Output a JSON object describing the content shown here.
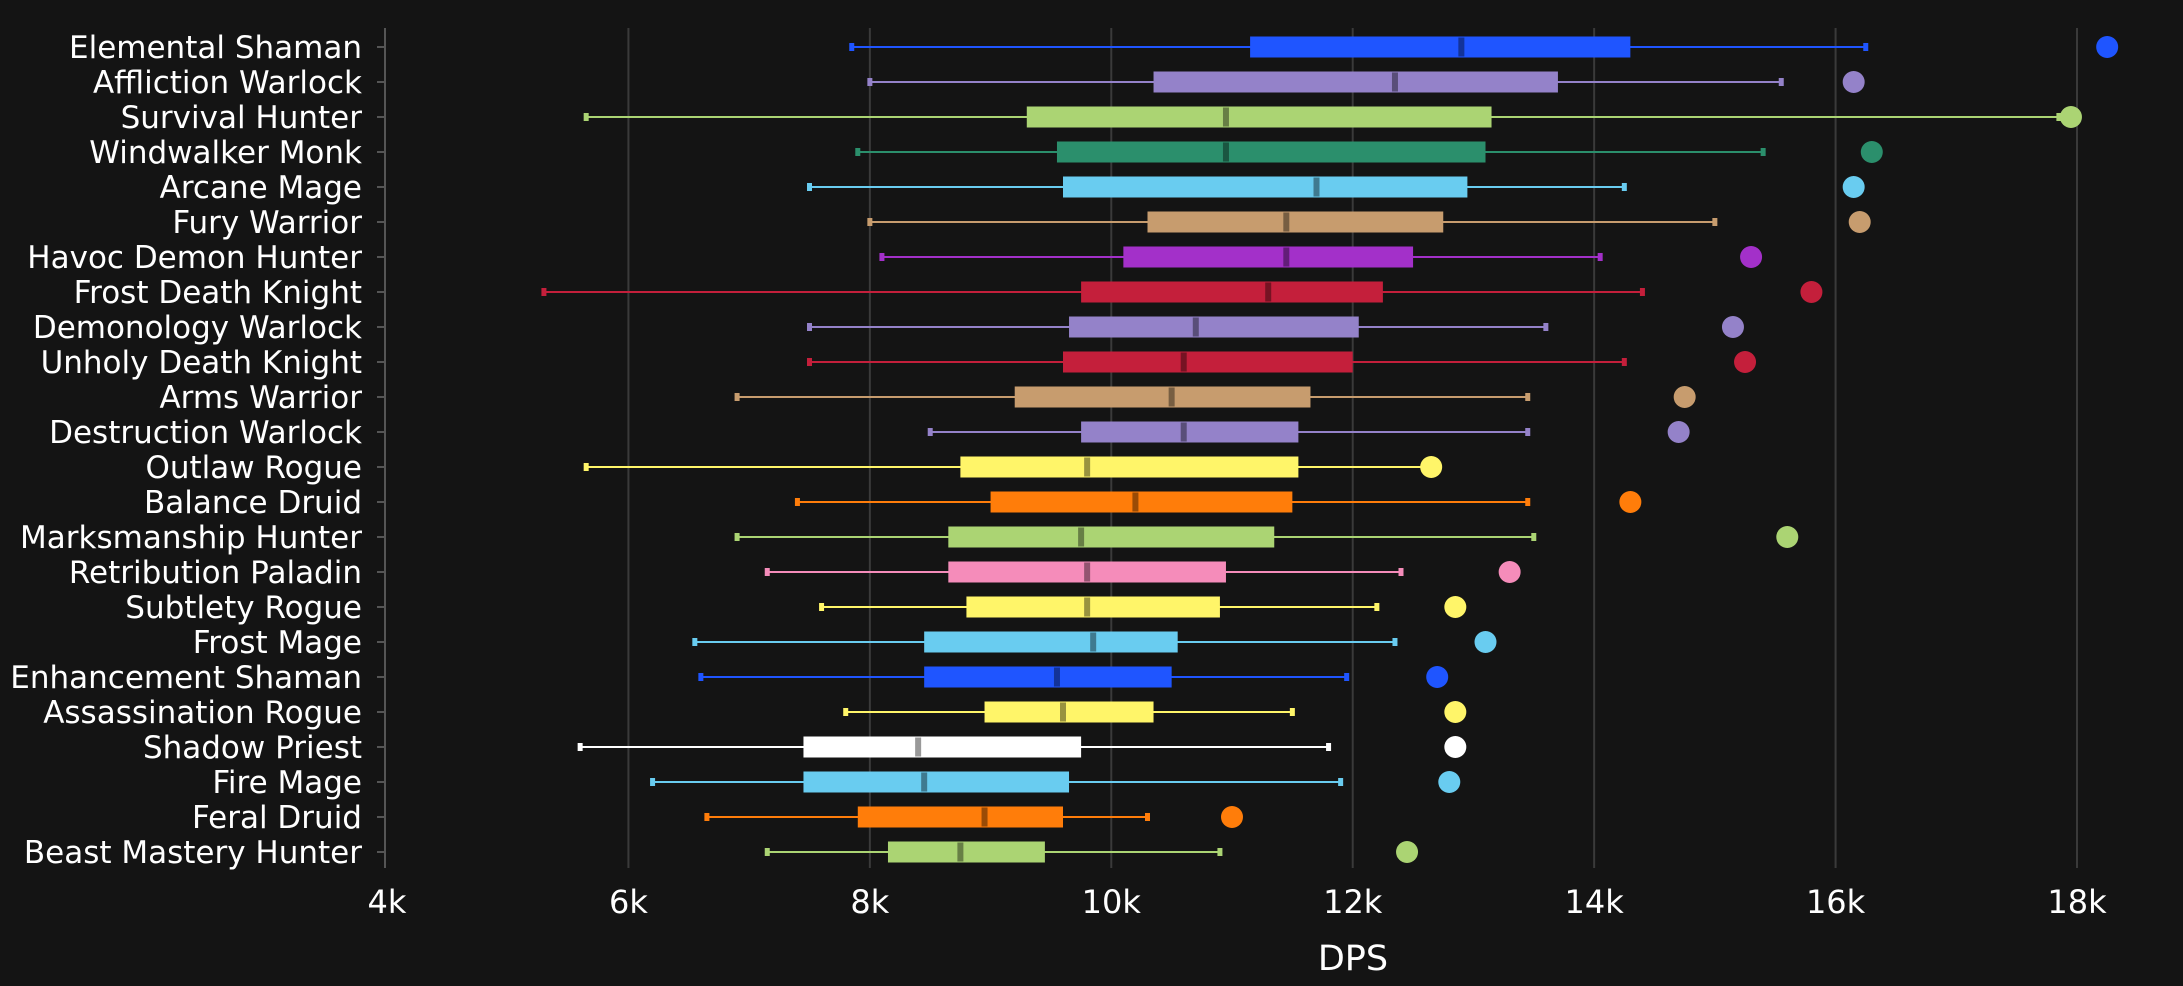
{
  "chart_data": {
    "type": "boxplot",
    "title": "",
    "xlabel": "DPS",
    "ylabel": "",
    "xlim": [
      4000,
      18500
    ],
    "x_ticks": [
      4000,
      6000,
      8000,
      10000,
      12000,
      14000,
      16000,
      18000
    ],
    "x_tick_labels": [
      "4k",
      "6k",
      "8k",
      "10k",
      "12k",
      "14k",
      "16k",
      "18k"
    ],
    "grid": true,
    "series": [
      {
        "name": "Elemental Shaman",
        "color": "#1f55ff",
        "min": 7850,
        "q1": 11150,
        "median": 12900,
        "q3": 14300,
        "max": 16250,
        "max_point": 18250
      },
      {
        "name": "Affliction Warlock",
        "color": "#9482c9",
        "min": 8000,
        "q1": 10350,
        "median": 12350,
        "q3": 13700,
        "max": 15550,
        "max_point": 16150
      },
      {
        "name": "Survival Hunter",
        "color": "#abd473",
        "min": 5650,
        "q1": 9300,
        "median": 10950,
        "q3": 13150,
        "max": 17850,
        "max_point": 17950
      },
      {
        "name": "Windwalker Monk",
        "color": "#2b8f6c",
        "min": 7900,
        "q1": 9550,
        "median": 10950,
        "q3": 13100,
        "max": 15400,
        "max_point": 16300
      },
      {
        "name": "Arcane Mage",
        "color": "#69ccf0",
        "min": 7500,
        "q1": 9600,
        "median": 11700,
        "q3": 12950,
        "max": 14250,
        "max_point": 16150
      },
      {
        "name": "Fury Warrior",
        "color": "#c79c6e",
        "min": 8000,
        "q1": 10300,
        "median": 11450,
        "q3": 12750,
        "max": 15000,
        "max_point": 16200
      },
      {
        "name": "Havoc Demon Hunter",
        "color": "#a330c9",
        "min": 8100,
        "q1": 10100,
        "median": 11450,
        "q3": 12500,
        "max": 14050,
        "max_point": 15300
      },
      {
        "name": "Frost Death Knight",
        "color": "#c41f3b",
        "min": 5300,
        "q1": 9750,
        "median": 11300,
        "q3": 12250,
        "max": 14400,
        "max_point": 15800
      },
      {
        "name": "Demonology Warlock",
        "color": "#9482c9",
        "min": 7500,
        "q1": 9650,
        "median": 10700,
        "q3": 12050,
        "max": 13600,
        "max_point": 15150
      },
      {
        "name": "Unholy Death Knight",
        "color": "#c41f3b",
        "min": 7500,
        "q1": 9600,
        "median": 10600,
        "q3": 12000,
        "max": 14250,
        "max_point": 15250
      },
      {
        "name": "Arms Warrior",
        "color": "#c79c6e",
        "min": 6900,
        "q1": 9200,
        "median": 10500,
        "q3": 11650,
        "max": 13450,
        "max_point": 14750
      },
      {
        "name": "Destruction Warlock",
        "color": "#9482c9",
        "min": 8500,
        "q1": 9750,
        "median": 10600,
        "q3": 11550,
        "max": 13450,
        "max_point": 14700
      },
      {
        "name": "Outlaw Rogue",
        "color": "#fff569",
        "min": 5650,
        "q1": 8750,
        "median": 9800,
        "q3": 11550,
        "max": 12650,
        "max_point": 12650
      },
      {
        "name": "Balance Druid",
        "color": "#ff7d0a",
        "min": 7400,
        "q1": 9000,
        "median": 10200,
        "q3": 11500,
        "max": 13450,
        "max_point": 14300
      },
      {
        "name": "Marksmanship Hunter",
        "color": "#abd473",
        "min": 6900,
        "q1": 8650,
        "median": 9750,
        "q3": 11350,
        "max": 13500,
        "max_point": 15600
      },
      {
        "name": "Retribution Paladin",
        "color": "#f58cba",
        "min": 7150,
        "q1": 8650,
        "median": 9800,
        "q3": 10950,
        "max": 12400,
        "max_point": 13300
      },
      {
        "name": "Subtlety Rogue",
        "color": "#fff569",
        "min": 7600,
        "q1": 8800,
        "median": 9800,
        "q3": 10900,
        "max": 12200,
        "max_point": 12850
      },
      {
        "name": "Frost Mage",
        "color": "#69ccf0",
        "min": 6550,
        "q1": 8450,
        "median": 9850,
        "q3": 10550,
        "max": 12350,
        "max_point": 13100
      },
      {
        "name": "Enhancement Shaman",
        "color": "#1f55ff",
        "min": 6600,
        "q1": 8450,
        "median": 9550,
        "q3": 10500,
        "max": 11950,
        "max_point": 12700
      },
      {
        "name": "Assassination Rogue",
        "color": "#fff569",
        "min": 7800,
        "q1": 8950,
        "median": 9600,
        "q3": 10350,
        "max": 11500,
        "max_point": 12850
      },
      {
        "name": "Shadow Priest",
        "color": "#ffffff",
        "min": 5600,
        "q1": 7450,
        "median": 8400,
        "q3": 9750,
        "max": 11800,
        "max_point": 12850
      },
      {
        "name": "Fire Mage",
        "color": "#69ccf0",
        "min": 6200,
        "q1": 7450,
        "median": 8450,
        "q3": 9650,
        "max": 11900,
        "max_point": 12800
      },
      {
        "name": "Feral Druid",
        "color": "#ff7d0a",
        "min": 6650,
        "q1": 7900,
        "median": 8950,
        "q3": 9600,
        "max": 10300,
        "max_point": 11000
      },
      {
        "name": "Beast Mastery Hunter",
        "color": "#abd473",
        "min": 7150,
        "q1": 8150,
        "median": 8750,
        "q3": 9450,
        "max": 10900,
        "max_point": 12450
      }
    ]
  }
}
